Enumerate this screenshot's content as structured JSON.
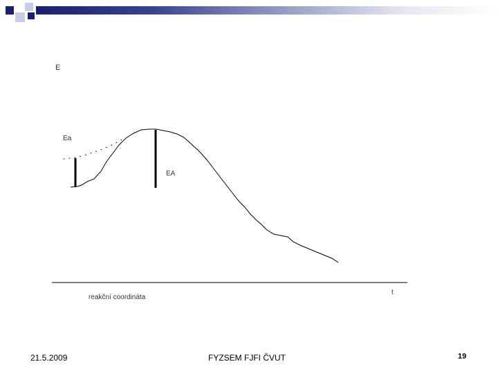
{
  "diagram": {
    "y_axis_label": "E",
    "x_axis_label": "t",
    "x_caption": "reakční coordináta",
    "label_small_barrier": "Ea",
    "label_large_barrier": "EA"
  },
  "footer": {
    "date": "21.5.2009",
    "center_text": "FYZSEM FJFI ČVUT",
    "page_number": "19"
  },
  "colors": {
    "deco_dark": "#1a1f6e",
    "deco_square_light": "#c9cde6",
    "line": "#000000"
  }
}
